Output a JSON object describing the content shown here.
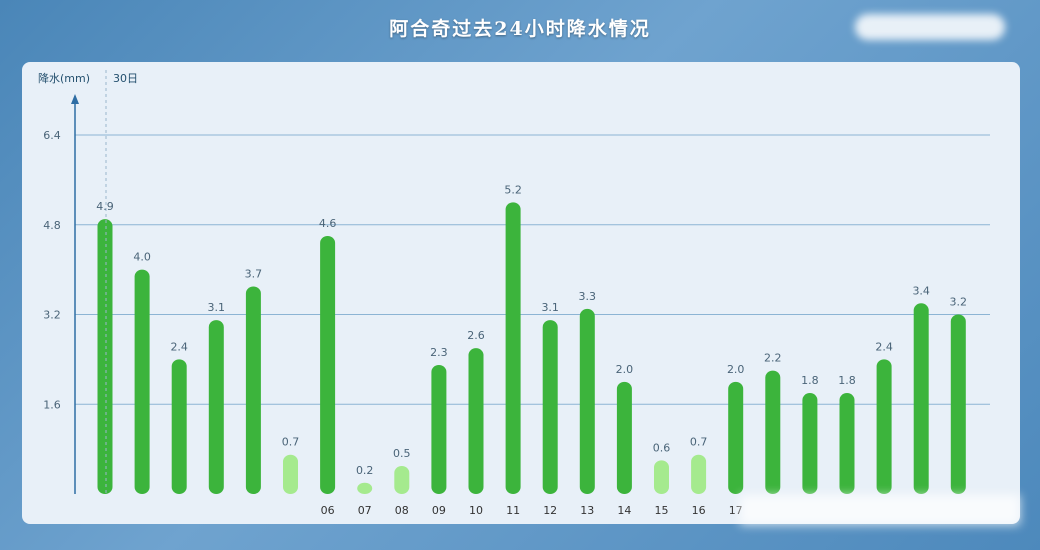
{
  "title": "阿合奇过去24小时降水情况",
  "colors": {
    "bar_main": "#3cb43c",
    "bar_light": "#a5ea8e",
    "axis": "#2e6da4",
    "grid": "#8cb4d4",
    "text": "#4a6478"
  },
  "chart_data": {
    "type": "bar",
    "title": "阿合奇过去24小时降水情况",
    "ylabel": "降水(mm)",
    "date_label": "30日",
    "ylim": [
      0,
      6.4
    ],
    "yticks": [
      "6.4",
      "4.8",
      "3.2",
      "1.6"
    ],
    "categories": [
      "",
      "",
      "",
      "",
      "",
      "",
      "06",
      "07",
      "08",
      "09",
      "10",
      "11",
      "12",
      "13",
      "14",
      "15",
      "16",
      "17",
      "",
      "",
      "",
      "",
      "",
      ""
    ],
    "values": [
      4.9,
      4.0,
      2.4,
      3.1,
      3.7,
      0.7,
      4.6,
      0.2,
      0.5,
      2.3,
      2.6,
      5.2,
      3.1,
      3.3,
      2.0,
      0.6,
      0.7,
      2.0,
      2.2,
      1.8,
      1.8,
      2.4,
      3.4,
      3.2
    ],
    "labels": [
      "4.9",
      "4.0",
      "2.4",
      "3.1",
      "3.7",
      "0.7",
      "4.6",
      "0.2",
      "0.5",
      "2.3",
      "2.6",
      "5.2",
      "3.1",
      "3.3",
      "2.0",
      "0.6",
      "0.7",
      "2.0",
      "2.2",
      "1.8",
      "1.8",
      "2.4",
      "3.4",
      "3.2"
    ],
    "light_threshold": 1.0,
    "grid": true
  }
}
